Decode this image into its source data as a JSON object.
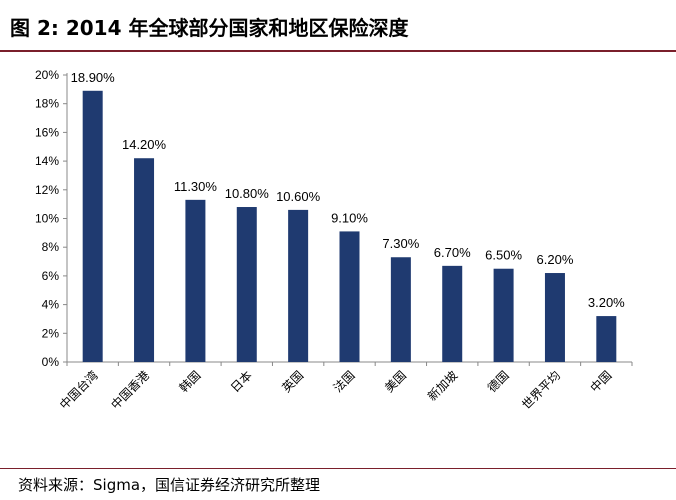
{
  "header": {
    "title": "图 2:  2014 年全球部分国家和地区保险深度"
  },
  "footer": {
    "source": "资料来源：Sigma，国信证券经济研究所整理"
  },
  "colors": {
    "bar": "#1f3a70",
    "rule": "#7a1f2b"
  },
  "chart_data": {
    "type": "bar",
    "categories": [
      "中国台湾",
      "中国香港",
      "韩国",
      "日本",
      "英国",
      "法国",
      "美国",
      "新加坡",
      "德国",
      "世界平均",
      "中国"
    ],
    "values": [
      18.9,
      14.2,
      11.3,
      10.8,
      10.6,
      9.1,
      7.3,
      6.7,
      6.5,
      6.2,
      3.2
    ],
    "data_labels": [
      "18.90%",
      "14.20%",
      "11.30%",
      "10.80%",
      "10.60%",
      "9.10%",
      "7.30%",
      "6.70%",
      "6.50%",
      "6.20%",
      "3.20%"
    ],
    "y_ticks": [
      0,
      2,
      4,
      6,
      8,
      10,
      12,
      14,
      16,
      18,
      20
    ],
    "y_tick_labels": [
      "0%",
      "2%",
      "4%",
      "6%",
      "8%",
      "10%",
      "12%",
      "14%",
      "16%",
      "18%",
      "20%"
    ],
    "ylim": [
      0,
      20
    ],
    "grid": false,
    "legend": "none"
  }
}
